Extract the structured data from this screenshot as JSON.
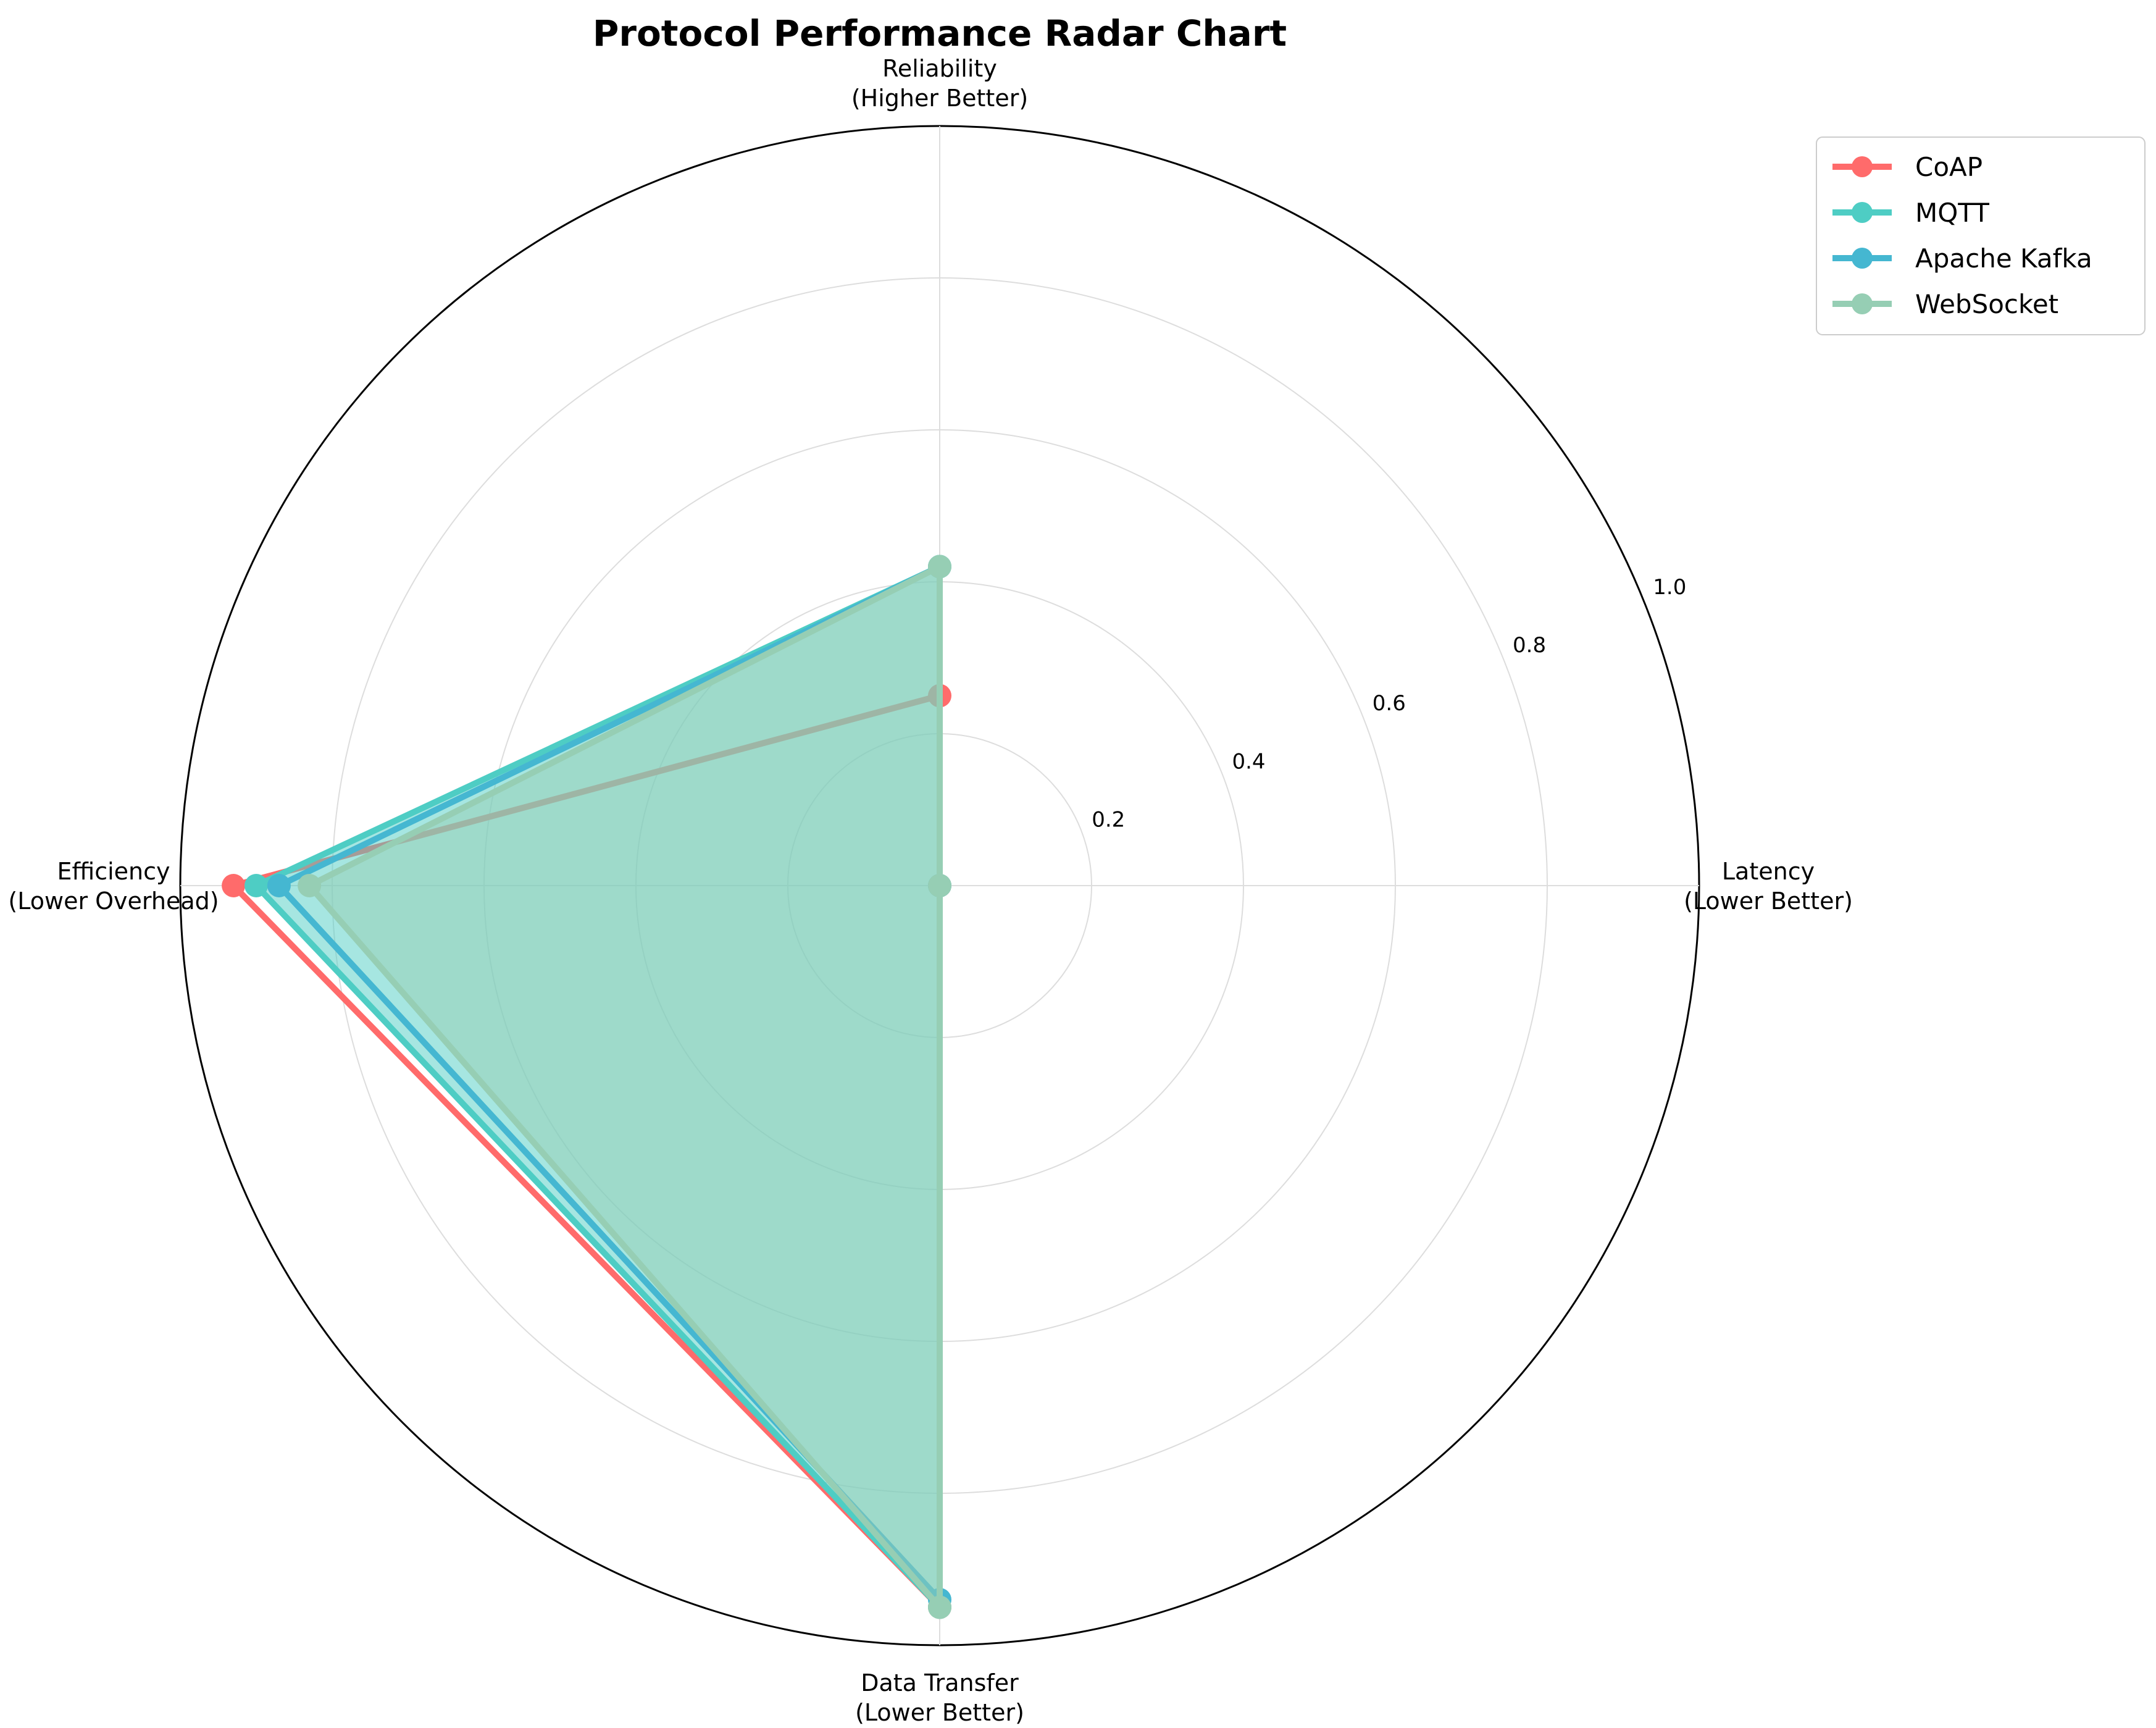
{
  "chart_data": {
    "type": "radar",
    "title": "Protocol Performance Radar Chart",
    "axes": [
      {
        "line1": "Reliability",
        "line2": "(Higher Better)"
      },
      {
        "line1": "Efficiency",
        "line2": "(Lower Overhead)"
      },
      {
        "line1": "Data Transfer",
        "line2": "(Lower Better)"
      },
      {
        "line1": "Latency",
        "line2": "(Lower Better)"
      }
    ],
    "rlim": [
      0,
      1.0
    ],
    "r_ticks": [
      0.2,
      0.4,
      0.6,
      0.8,
      1.0
    ],
    "r_tick_labels": [
      "0.2",
      "0.4",
      "0.6",
      "0.8",
      "1.0"
    ],
    "grid": true,
    "legend_position": "top-right",
    "series": [
      {
        "name": "CoAP",
        "color": "#FF6B6B",
        "values": [
          0.25,
          0.93,
          0.95,
          0.0
        ],
        "fill": false
      },
      {
        "name": "MQTT",
        "color": "#4ECDC4",
        "values": [
          0.42,
          0.9,
          0.95,
          0.0
        ],
        "fill": true
      },
      {
        "name": "Apache Kafka",
        "color": "#45B7D1",
        "values": [
          0.42,
          0.87,
          0.94,
          0.0
        ],
        "fill": false
      },
      {
        "name": "WebSocket",
        "color": "#96CEB4",
        "values": [
          0.42,
          0.83,
          0.95,
          0.0
        ],
        "fill": true
      }
    ]
  }
}
